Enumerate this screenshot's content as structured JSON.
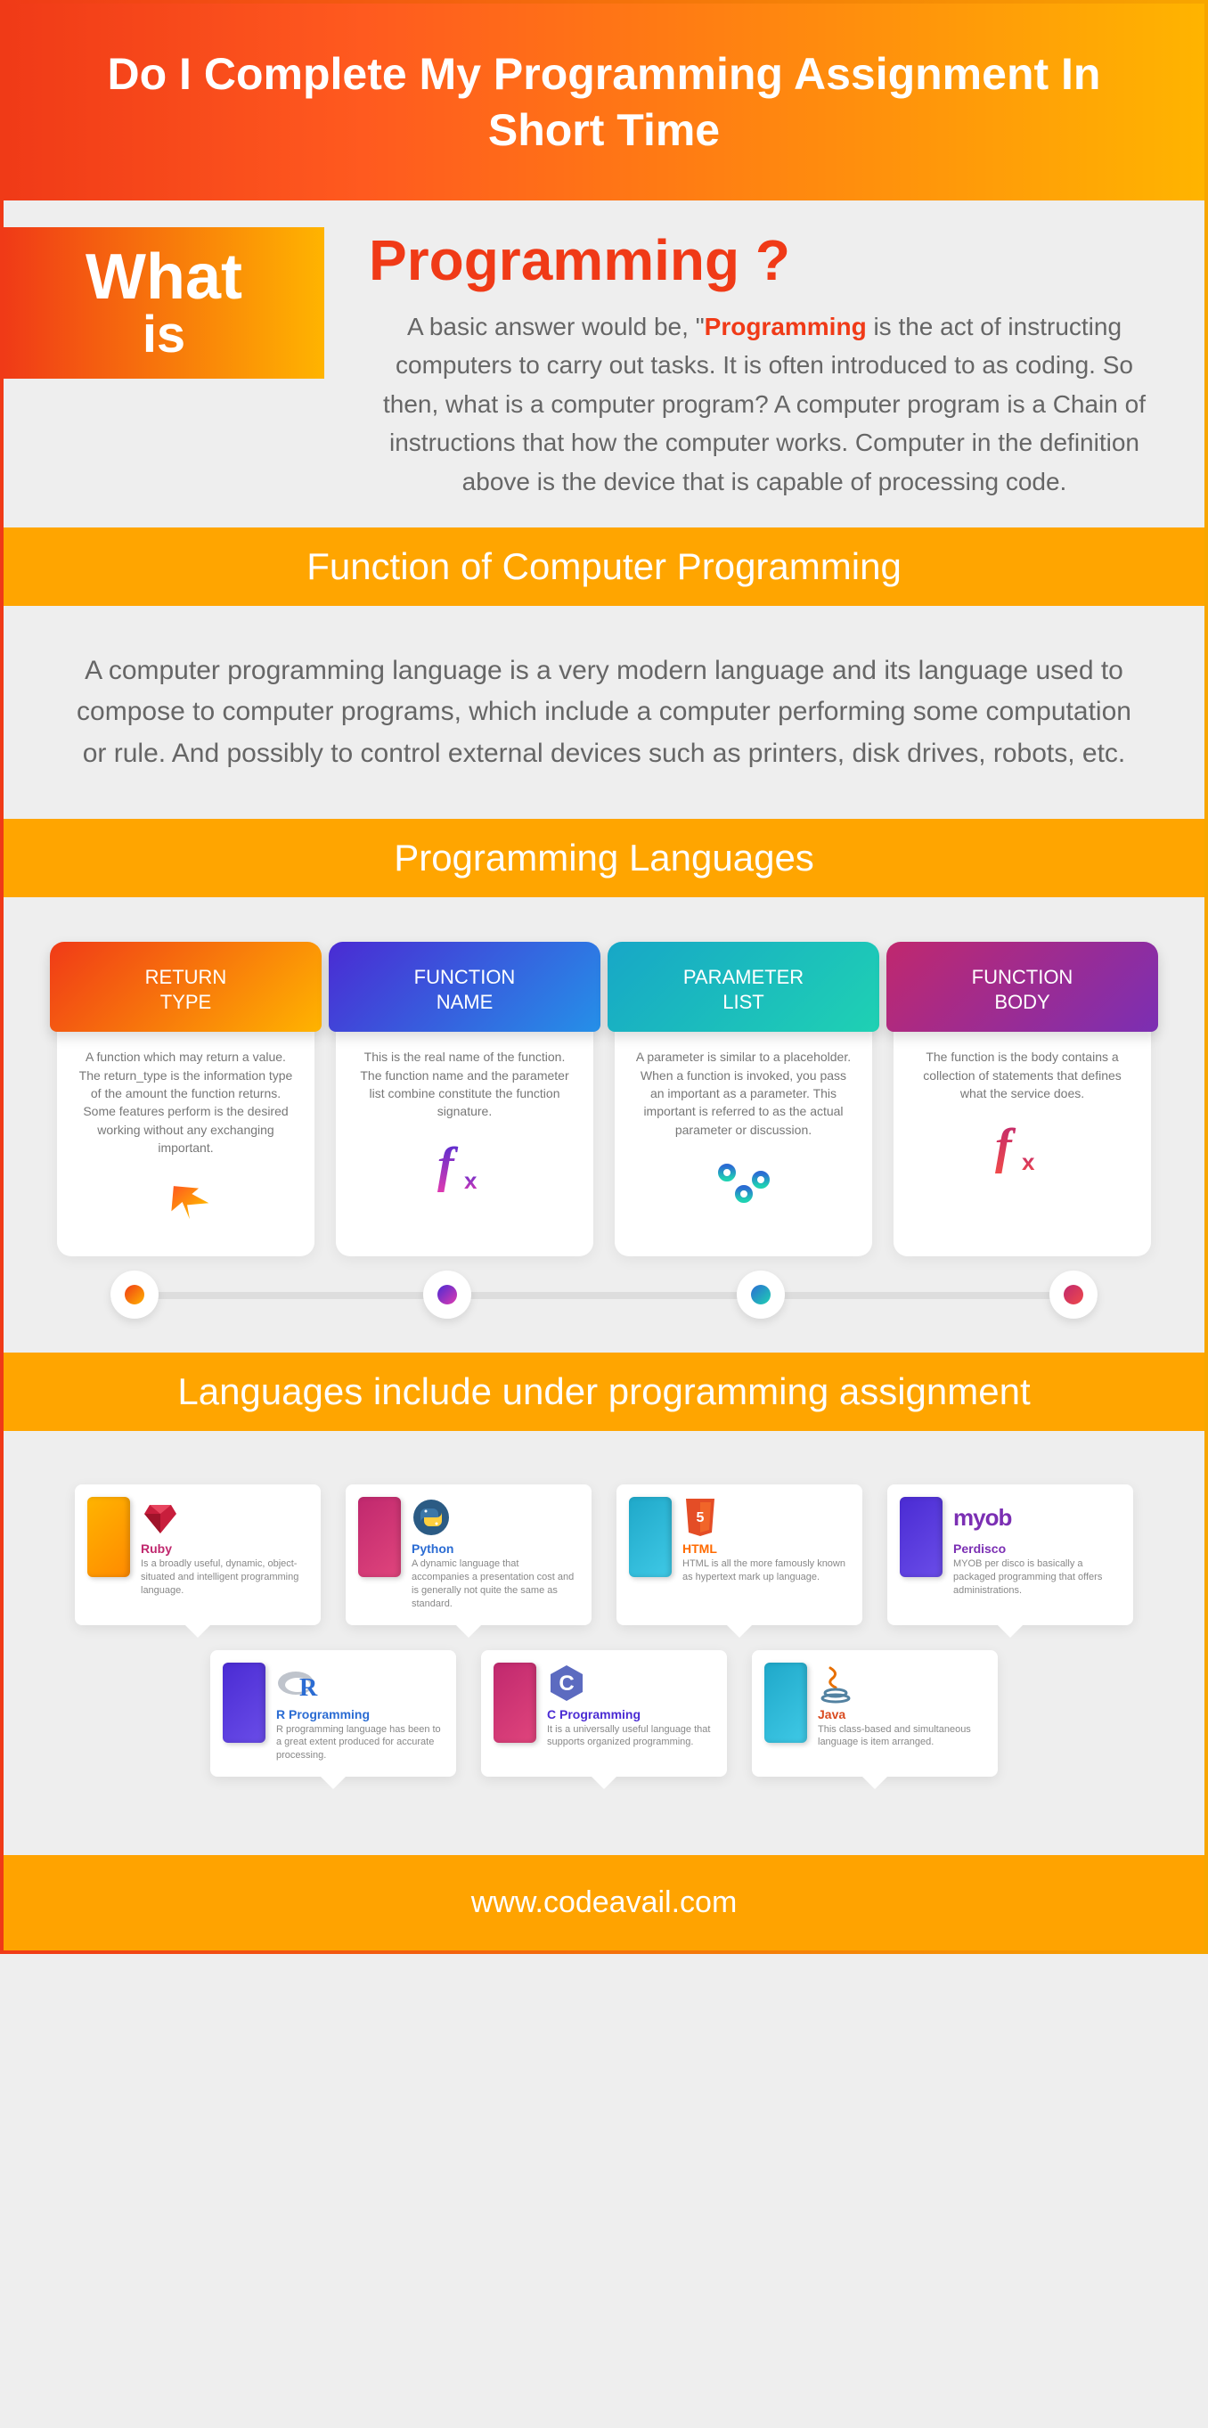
{
  "hero": {
    "title": "Do I Complete My Programming Assignment In Short Time"
  },
  "what": {
    "badge_line1": "What",
    "badge_line2": "is",
    "heading": "Programming ?",
    "intro_prefix": "A basic answer would be, \"",
    "intro_bold": "Programming",
    "intro_suffix": " is the act of instructing computers to carry out tasks. It is often introduced to as coding. So then, what is a computer program? A computer program is a Chain of instructions that how the computer works. Computer in the definition above is the device that is capable of  processing code."
  },
  "section_function": {
    "title": "Function of Computer Programming",
    "body": "A computer programming language is a very modern language and its language used to compose to computer programs, which include a computer performing some computation or rule. And possibly to control external devices such as printers, disk drives, robots, etc."
  },
  "section_langs": {
    "title": "Programming Languages"
  },
  "cards": [
    {
      "title": "RETURN TYPE",
      "text": "A function which may return a value. The return_type is the information type of the amount the function returns. Some features perform is the desired working without any exchanging important.",
      "head_gradient": "linear-gradient(135deg,#f03a17 0%,#ffb400 100%)",
      "icon": "arrow",
      "icon_gradient": "linear-gradient(180deg,#ff5a1f 0%,#ffb400 100%)",
      "dot_gradient": "linear-gradient(135deg,#f03a17 0%,#ffb400 100%)"
    },
    {
      "title": "FUNCTION NAME",
      "text": "This is the real name of the function. The function name and the parameter list combine constitute the function signature.",
      "head_gradient": "linear-gradient(135deg,#4a2bd3 0%,#2590e8 100%)",
      "icon": "fx",
      "icon_gradient": "linear-gradient(180deg,#4a2bd3 0%,#e03ab0 100%)",
      "dot_gradient": "linear-gradient(135deg,#4a2bd3 0%,#e03ab0 100%)"
    },
    {
      "title": "PARAMETER LIST",
      "text": "A parameter is similar to a placeholder. When a function is invoked, you pass an important as a parameter. This important is referred to as the actual parameter or discussion.",
      "head_gradient": "linear-gradient(135deg,#17a7c7 0%,#1fd1b3 100%)",
      "icon": "sliders",
      "icon_gradient": "linear-gradient(180deg,#2b6cd3 0%,#1fd1b3 100%)",
      "dot_gradient": "linear-gradient(135deg,#2b6cd3 0%,#1fd1b3 100%)"
    },
    {
      "title": "FUNCTION BODY",
      "text": "The function is the body contains a collection of statements that defines what the service does.",
      "head_gradient": "linear-gradient(135deg,#c0286e 0%,#7b2fb3 100%)",
      "icon": "fx",
      "icon_gradient": "linear-gradient(180deg,#c0286e 0%,#f04a4a 100%)",
      "dot_gradient": "linear-gradient(135deg,#c0286e 0%,#f04a4a 100%)"
    }
  ],
  "section_under": {
    "title": "Languages include under programming assignment"
  },
  "languages": [
    {
      "name": "Ruby",
      "desc": "Is a broadly useful, dynamic, object-situated and intelligent programming language.",
      "name_color": "#c0286e",
      "tab_color": "linear-gradient(135deg,#ffb400 0%,#ff8a00 100%)",
      "icon": "ruby",
      "icon_color": "#c81e3c"
    },
    {
      "name": "Python",
      "desc": "A dynamic language that accompanies a presentation cost and is generally not quite the same as standard.",
      "name_color": "#2b6cd3",
      "tab_color": "linear-gradient(135deg,#c0286e 0%,#e0457c 100%)",
      "icon": "python",
      "icon_color": "#2b6cd3"
    },
    {
      "name": "HTML",
      "desc": "HTML is all the more famously known as hypertext mark up language.",
      "name_color": "#ff6a00",
      "tab_color": "linear-gradient(135deg,#1fa8c9 0%,#3fc9e6 100%)",
      "icon": "html",
      "icon_color": "#ff5a1f"
    },
    {
      "name": "Perdisco",
      "desc": "MYOB per disco is basically a packaged programming that offers administrations.",
      "name_color": "#7b2fb3",
      "tab_color": "linear-gradient(135deg,#4a2bd3 0%,#6a4de8 100%)",
      "icon": "myob",
      "icon_color": "#7b2fb3"
    },
    {
      "name": "R Programming",
      "desc": "R programming language has been to a great extent produced for accurate processing.",
      "name_color": "#2b6cd3",
      "tab_color": "linear-gradient(135deg,#4a2bd3 0%,#6a4de8 100%)",
      "icon": "r",
      "icon_color": "#2b6cd3"
    },
    {
      "name": "C Programming",
      "desc": "It is a universally useful language that supports organized programming.",
      "name_color": "#4a2bd3",
      "tab_color": "linear-gradient(135deg,#c0286e 0%,#e0457c 100%)",
      "icon": "c",
      "icon_color": "#4a2bd3"
    },
    {
      "name": "Java",
      "desc": "This class-based and simultaneous language is item arranged.",
      "name_color": "#d94a1f",
      "tab_color": "linear-gradient(135deg,#1fa8c9 0%,#3fc9e6 100%)",
      "icon": "java",
      "icon_color": "#d94a1f"
    }
  ],
  "footer": {
    "url": "www.codeavail.com"
  }
}
